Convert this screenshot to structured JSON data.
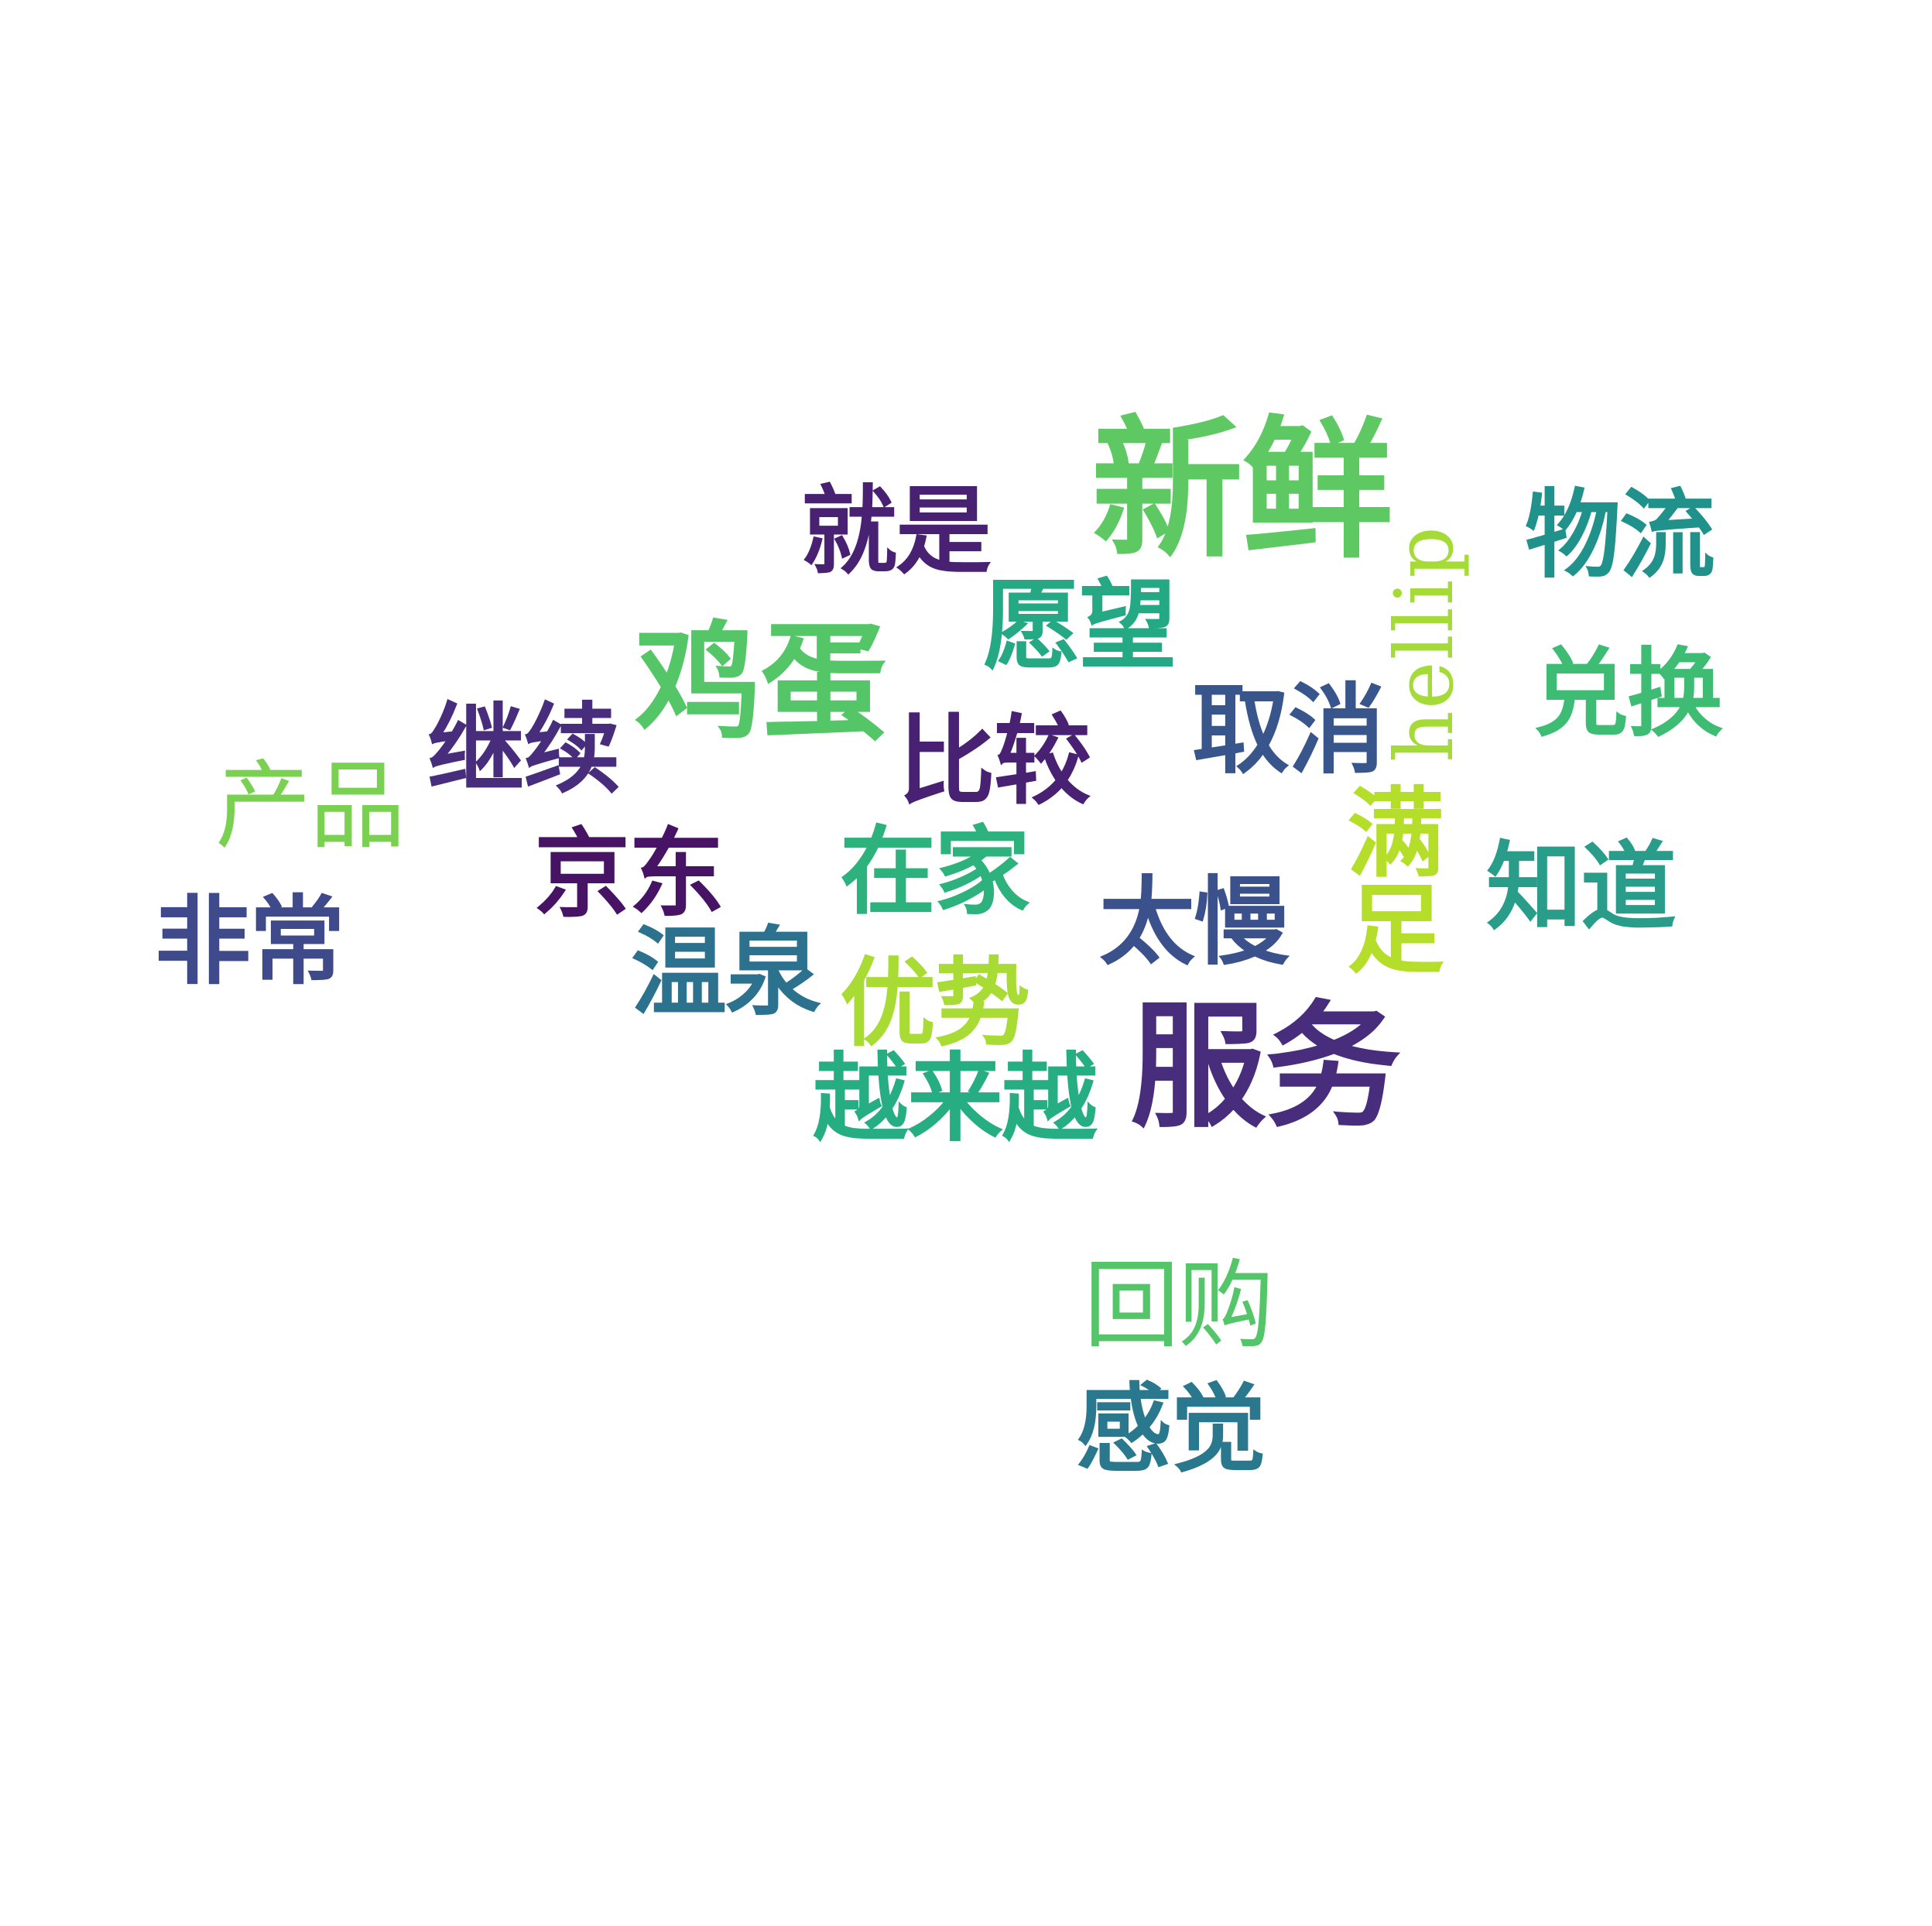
{
  "cloud": {
    "words": {
      "xinxian": {
        "text": "新鲜",
        "color": "#5ec962"
      },
      "fuwu": {
        "text": "服务",
        "color": "#472d7b"
      },
      "jidan": {
        "text": "鸡蛋",
        "color": "#55c667"
      },
      "jiushi": {
        "text": "就是",
        "color": "#482173"
      },
      "yuanwang": {
        "text": "愿望",
        "color": "#25a984"
      },
      "wuliu": {
        "text": "物流",
        "color": "#21918c"
      },
      "duihuan": {
        "text": "兑换",
        "color": "#3fbc73"
      },
      "hellip": {
        "text": "hellip",
        "color": "#a5db36"
      },
      "quxiao": {
        "text": "取消",
        "color": "#39568c"
      },
      "bijiao": {
        "text": "比较",
        "color": "#482173"
      },
      "jixu": {
        "text": "继续",
        "color": "#472d7b"
      },
      "chanpin": {
        "text": "产品",
        "color": "#7ad151"
      },
      "jingdong": {
        "text": "京东",
        "color": "#471365"
      },
      "zaijia": {
        "text": "在家",
        "color": "#2db27d"
      },
      "manzu": {
        "text": "满足",
        "color": "#b5de2b"
      },
      "zhidao": {
        "text": "知道",
        "color": "#2a9d8a"
      },
      "taiman": {
        "text": "太慢",
        "color": "#3b518b"
      },
      "feichang": {
        "text": "非常",
        "color": "#3e4a89"
      },
      "wenquan": {
        "text": "温泉",
        "color": "#2c728e"
      },
      "youshi": {
        "text": "优势",
        "color": "#a8db34"
      },
      "yuelaiyue": {
        "text": "越来越",
        "color": "#26ad81"
      },
      "huigou": {
        "text": "回购",
        "color": "#54c568"
      },
      "ganjue": {
        "text": "感觉",
        "color": "#2a788e"
      }
    }
  }
}
